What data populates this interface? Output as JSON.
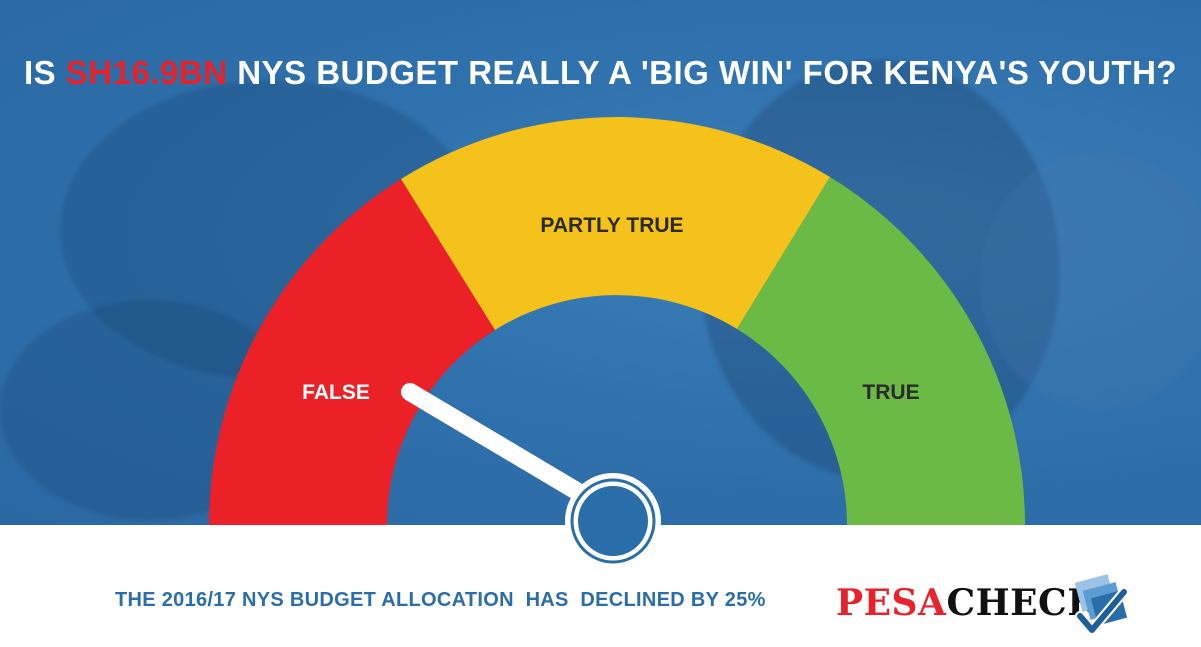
{
  "headline": {
    "prefix": "IS ",
    "highlight": "SH16.9BN",
    "suffix": " NYS BUDGET REALLY A 'BIG WIN' FOR KENYA'S YOUTH?"
  },
  "gauge": {
    "segments": [
      {
        "label": "FALSE",
        "color": "#ec2027"
      },
      {
        "label": "PARTLY TRUE",
        "color": "#f4c21a"
      },
      {
        "label": "TRUE",
        "color": "#6aba45"
      }
    ],
    "selected": "FALSE"
  },
  "footer": {
    "text": "THE 2016/17 NYS BUDGET ALLOCATION  HAS  DECLINED BY 25%"
  },
  "logo": {
    "part1": "PESA",
    "part2": "CHECK",
    "icon": "checkmark-icon"
  },
  "colors": {
    "background_blue": "#2f72ad",
    "accent_red": "#e8222b",
    "footer_text": "#2a6ea9"
  }
}
